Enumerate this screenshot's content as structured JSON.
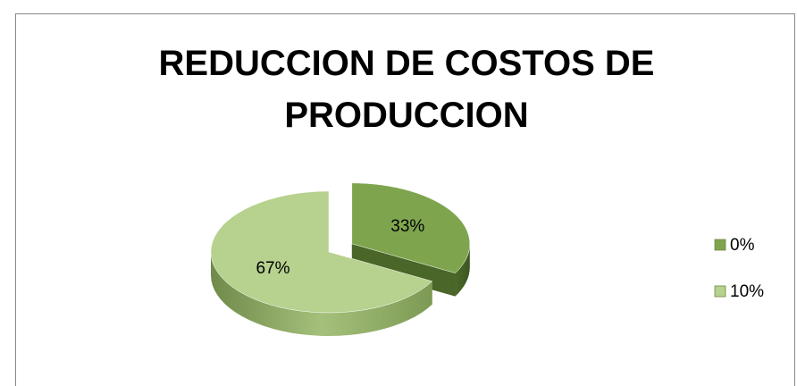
{
  "chart_data": {
    "type": "pie",
    "title": "REDUCCION DE COSTOS DE PRODUCCION",
    "categories": [
      "0%",
      "10%"
    ],
    "values": [
      33,
      67
    ],
    "value_labels": [
      "33%",
      "67%"
    ],
    "colors": [
      "#7ea54e",
      "#b7d18e"
    ],
    "legend": "right"
  }
}
